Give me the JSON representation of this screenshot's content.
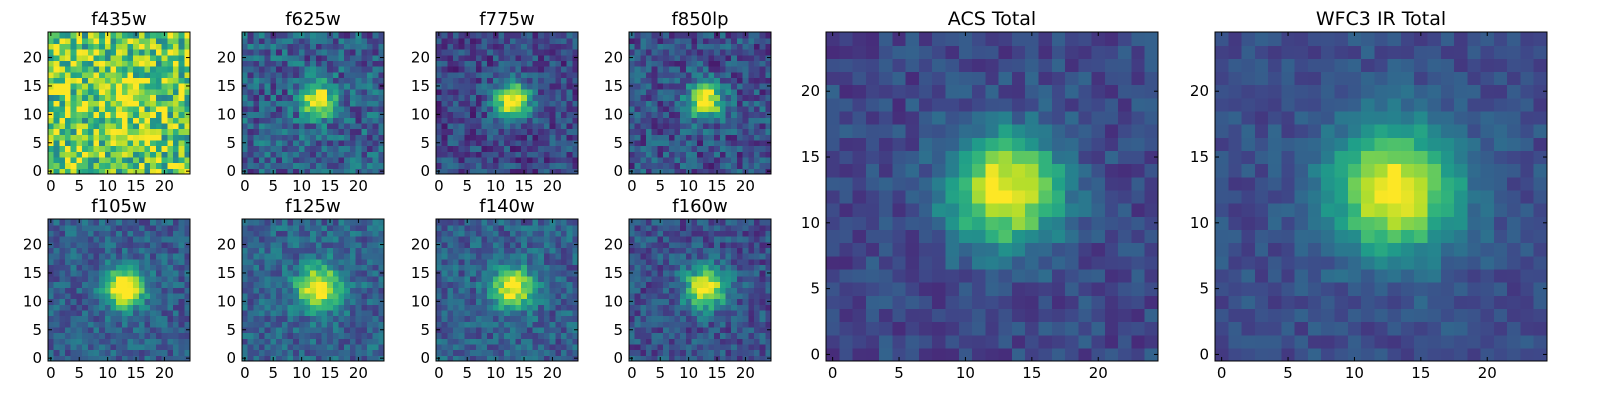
{
  "colormap": "viridis",
  "colors": {
    "cmap_low": "#440154",
    "cmap_mid": "#21918c",
    "cmap_high": "#fde725",
    "axes_frame": "#000000"
  },
  "chart_data": [
    {
      "type": "heatmap",
      "title": "f435w",
      "grid_size": 25,
      "center": [
        13,
        12.5
      ],
      "sigma": 2.4,
      "peak": 0.35,
      "background": 0.75,
      "noise": 0.32,
      "xlim": [
        0,
        24
      ],
      "ylim": [
        0,
        24
      ],
      "xticks": [
        "0",
        "5",
        "10",
        "15",
        "20"
      ],
      "yticks": [
        "0",
        "5",
        "10",
        "15",
        "20"
      ]
    },
    {
      "type": "heatmap",
      "title": "f625w",
      "grid_size": 25,
      "center": [
        13,
        12.5
      ],
      "sigma": 2.0,
      "peak": 0.8,
      "background": 0.3,
      "noise": 0.2,
      "xlim": [
        0,
        24
      ],
      "ylim": [
        0,
        24
      ],
      "xticks": [
        "0",
        "5",
        "10",
        "15",
        "20"
      ],
      "yticks": [
        "0",
        "5",
        "10",
        "15",
        "20"
      ]
    },
    {
      "type": "heatmap",
      "title": "f775w",
      "grid_size": 25,
      "center": [
        13,
        12.5
      ],
      "sigma": 2.2,
      "peak": 0.85,
      "background": 0.22,
      "noise": 0.16,
      "xlim": [
        0,
        24
      ],
      "ylim": [
        0,
        24
      ],
      "xticks": [
        "0",
        "5",
        "10",
        "15",
        "20"
      ],
      "yticks": [
        "0",
        "5",
        "10",
        "15",
        "20"
      ]
    },
    {
      "type": "heatmap",
      "title": "f850lp",
      "grid_size": 25,
      "center": [
        13,
        12.5
      ],
      "sigma": 2.1,
      "peak": 0.85,
      "background": 0.25,
      "noise": 0.18,
      "xlim": [
        0,
        24
      ],
      "ylim": [
        0,
        24
      ],
      "xticks": [
        "0",
        "5",
        "10",
        "15",
        "20"
      ],
      "yticks": [
        "0",
        "5",
        "10",
        "15",
        "20"
      ]
    },
    {
      "type": "heatmap",
      "title": "f105w",
      "grid_size": 25,
      "center": [
        13,
        12.5
      ],
      "sigma": 2.4,
      "peak": 0.85,
      "background": 0.3,
      "noise": 0.14,
      "xlim": [
        0,
        24
      ],
      "ylim": [
        0,
        24
      ],
      "xticks": [
        "0",
        "5",
        "10",
        "15",
        "20"
      ],
      "yticks": [
        "0",
        "5",
        "10",
        "15",
        "20"
      ]
    },
    {
      "type": "heatmap",
      "title": "f125w",
      "grid_size": 25,
      "center": [
        13,
        12.5
      ],
      "sigma": 2.6,
      "peak": 0.75,
      "background": 0.32,
      "noise": 0.15,
      "xlim": [
        0,
        24
      ],
      "ylim": [
        0,
        24
      ],
      "xticks": [
        "0",
        "5",
        "10",
        "15",
        "20"
      ],
      "yticks": [
        "0",
        "5",
        "10",
        "15",
        "20"
      ]
    },
    {
      "type": "heatmap",
      "title": "f140w",
      "grid_size": 25,
      "center": [
        13,
        12.5
      ],
      "sigma": 2.5,
      "peak": 0.75,
      "background": 0.3,
      "noise": 0.15,
      "xlim": [
        0,
        24
      ],
      "ylim": [
        0,
        24
      ],
      "xticks": [
        "0",
        "5",
        "10",
        "15",
        "20"
      ],
      "yticks": [
        "0",
        "5",
        "10",
        "15",
        "20"
      ]
    },
    {
      "type": "heatmap",
      "title": "f160w",
      "grid_size": 25,
      "center": [
        13,
        12.5
      ],
      "sigma": 2.5,
      "peak": 0.8,
      "background": 0.25,
      "noise": 0.15,
      "xlim": [
        0,
        24
      ],
      "ylim": [
        0,
        24
      ],
      "xticks": [
        "0",
        "5",
        "10",
        "15",
        "20"
      ],
      "yticks": [
        "0",
        "5",
        "10",
        "15",
        "20"
      ]
    },
    {
      "type": "heatmap",
      "title": "ACS Total",
      "grid_size": 25,
      "center": [
        13,
        12.5
      ],
      "sigma": 3.0,
      "peak": 0.8,
      "background": 0.22,
      "noise": 0.1,
      "xlim": [
        0,
        24
      ],
      "ylim": [
        0,
        24
      ],
      "xticks": [
        "0",
        "5",
        "10",
        "15",
        "20"
      ],
      "yticks": [
        "0",
        "5",
        "10",
        "15",
        "20"
      ]
    },
    {
      "type": "heatmap",
      "title": "WFC3 IR Total",
      "grid_size": 25,
      "center": [
        13,
        12.5
      ],
      "sigma": 3.4,
      "peak": 0.78,
      "background": 0.24,
      "noise": 0.08,
      "xlim": [
        0,
        24
      ],
      "ylim": [
        0,
        24
      ],
      "xticks": [
        "0",
        "5",
        "10",
        "15",
        "20"
      ],
      "yticks": [
        "0",
        "5",
        "10",
        "15",
        "20"
      ]
    }
  ]
}
